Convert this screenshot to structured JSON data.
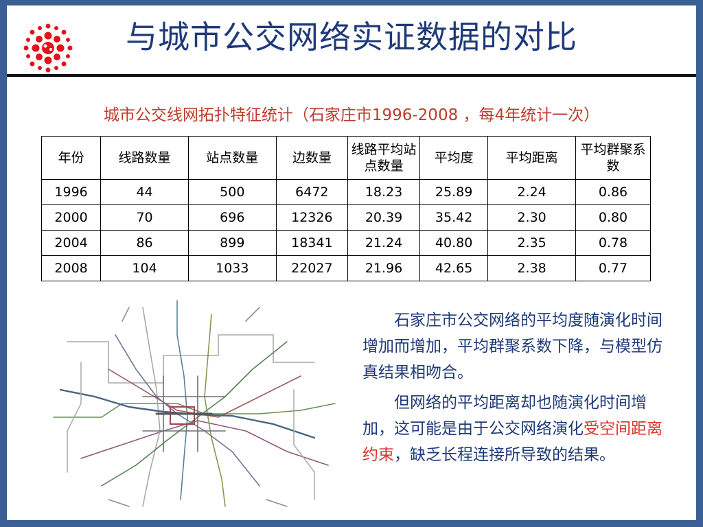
{
  "title": "与城市公交网络实证数据的对比",
  "subtitle": "城市公交线网拓扑特征统计（石家庄市1996-2008 ，每4年统计一次）",
  "table": {
    "headers": [
      "年份",
      "线路数量",
      "站点数量",
      "边数量",
      "线路平均站点数量",
      "平均度",
      "平均距离",
      "平均群聚系数"
    ],
    "rows": [
      [
        "1996",
        "44",
        "500",
        "6472",
        "18.23",
        "25.89",
        "2.24",
        "0.86"
      ],
      [
        "2000",
        "70",
        "696",
        "12326",
        "20.39",
        "35.42",
        "2.30",
        "0.80"
      ],
      [
        "2004",
        "86",
        "899",
        "18341",
        "21.24",
        "40.80",
        "2.35",
        "0.78"
      ],
      [
        "2008",
        "104",
        "1033",
        "22027",
        "21.96",
        "42.65",
        "2.38",
        "0.77"
      ]
    ]
  },
  "description": {
    "p1": "石家庄市公交网络的平均度随演化时间增加而增加，平均群聚系数下降，与模型仿真结果相吻合。",
    "p2_before": "但网络的平均距离却也随演化时间增加，这可能是由于公交网络演化",
    "p2_highlight": "受空间距离约束",
    "p2_after": "，缺乏长程连接所导致的结果。"
  },
  "colors": {
    "title": "#1f3a78",
    "subtitle": "#c0392b",
    "frame": "#3a5f95",
    "highlight": "#d8342b"
  },
  "icons": {
    "logo": "red-dot-burst-logo-icon",
    "map": "bus-network-map-image"
  }
}
